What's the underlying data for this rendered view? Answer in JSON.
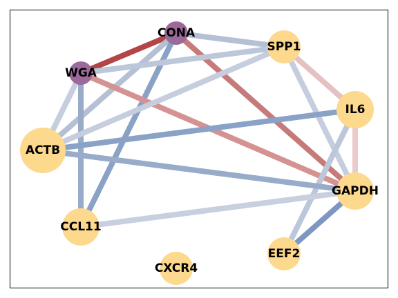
{
  "nodes": [
    {
      "id": "CONA",
      "label": "CONA",
      "color": "#9b6a9a",
      "size": "small"
    },
    {
      "id": "SPP1",
      "label": "SPP1",
      "color": "#fdd98e",
      "size": "medium"
    },
    {
      "id": "WGA",
      "label": "WGA",
      "color": "#9b6a9a",
      "size": "small"
    },
    {
      "id": "IL6",
      "label": "IL6",
      "color": "#fdd98e",
      "size": "large"
    },
    {
      "id": "ACTB",
      "label": "ACTB",
      "color": "#fdd98e",
      "size": "xlarge"
    },
    {
      "id": "GAPDH",
      "label": "GAPDH",
      "color": "#fdd98e",
      "size": "large"
    },
    {
      "id": "CCL11",
      "label": "CCL11",
      "color": "#fdd98e",
      "size": "large"
    },
    {
      "id": "EEF2",
      "label": "EEF2",
      "color": "#fdd98e",
      "size": "medium"
    },
    {
      "id": "CXCR4",
      "label": "CXCR4",
      "color": "#fdd98e",
      "size": "medium"
    }
  ],
  "edges": [
    {
      "source": "CONA",
      "target": "WGA",
      "color": "#b24548"
    },
    {
      "source": "CONA",
      "target": "SPP1",
      "color": "#b5c0d5"
    },
    {
      "source": "CONA",
      "target": "GAPDH",
      "color": "#c77a7a"
    },
    {
      "source": "CONA",
      "target": "ACTB",
      "color": "#b5c0d5"
    },
    {
      "source": "CONA",
      "target": "CCL11",
      "color": "#8aa2c6"
    },
    {
      "source": "WGA",
      "target": "SPP1",
      "color": "#bdc7da"
    },
    {
      "source": "WGA",
      "target": "GAPDH",
      "color": "#d49392"
    },
    {
      "source": "WGA",
      "target": "ACTB",
      "color": "#c5cdde"
    },
    {
      "source": "WGA",
      "target": "CCL11",
      "color": "#98acca"
    },
    {
      "source": "SPP1",
      "target": "ACTB",
      "color": "#c5cdde"
    },
    {
      "source": "SPP1",
      "target": "IL6",
      "color": "#e6c1c1"
    },
    {
      "source": "SPP1",
      "target": "GAPDH",
      "color": "#c5cdde"
    },
    {
      "source": "IL6",
      "target": "ACTB",
      "color": "#8aa2c6"
    },
    {
      "source": "IL6",
      "target": "GAPDH",
      "color": "#eacaca"
    },
    {
      "source": "IL6",
      "target": "EEF2",
      "color": "#bdc7da"
    },
    {
      "source": "ACTB",
      "target": "GAPDH",
      "color": "#98acca"
    },
    {
      "source": "CCL11",
      "target": "GAPDH",
      "color": "#c8cfde"
    },
    {
      "source": "EEF2",
      "target": "GAPDH",
      "color": "#7d97c3"
    }
  ]
}
